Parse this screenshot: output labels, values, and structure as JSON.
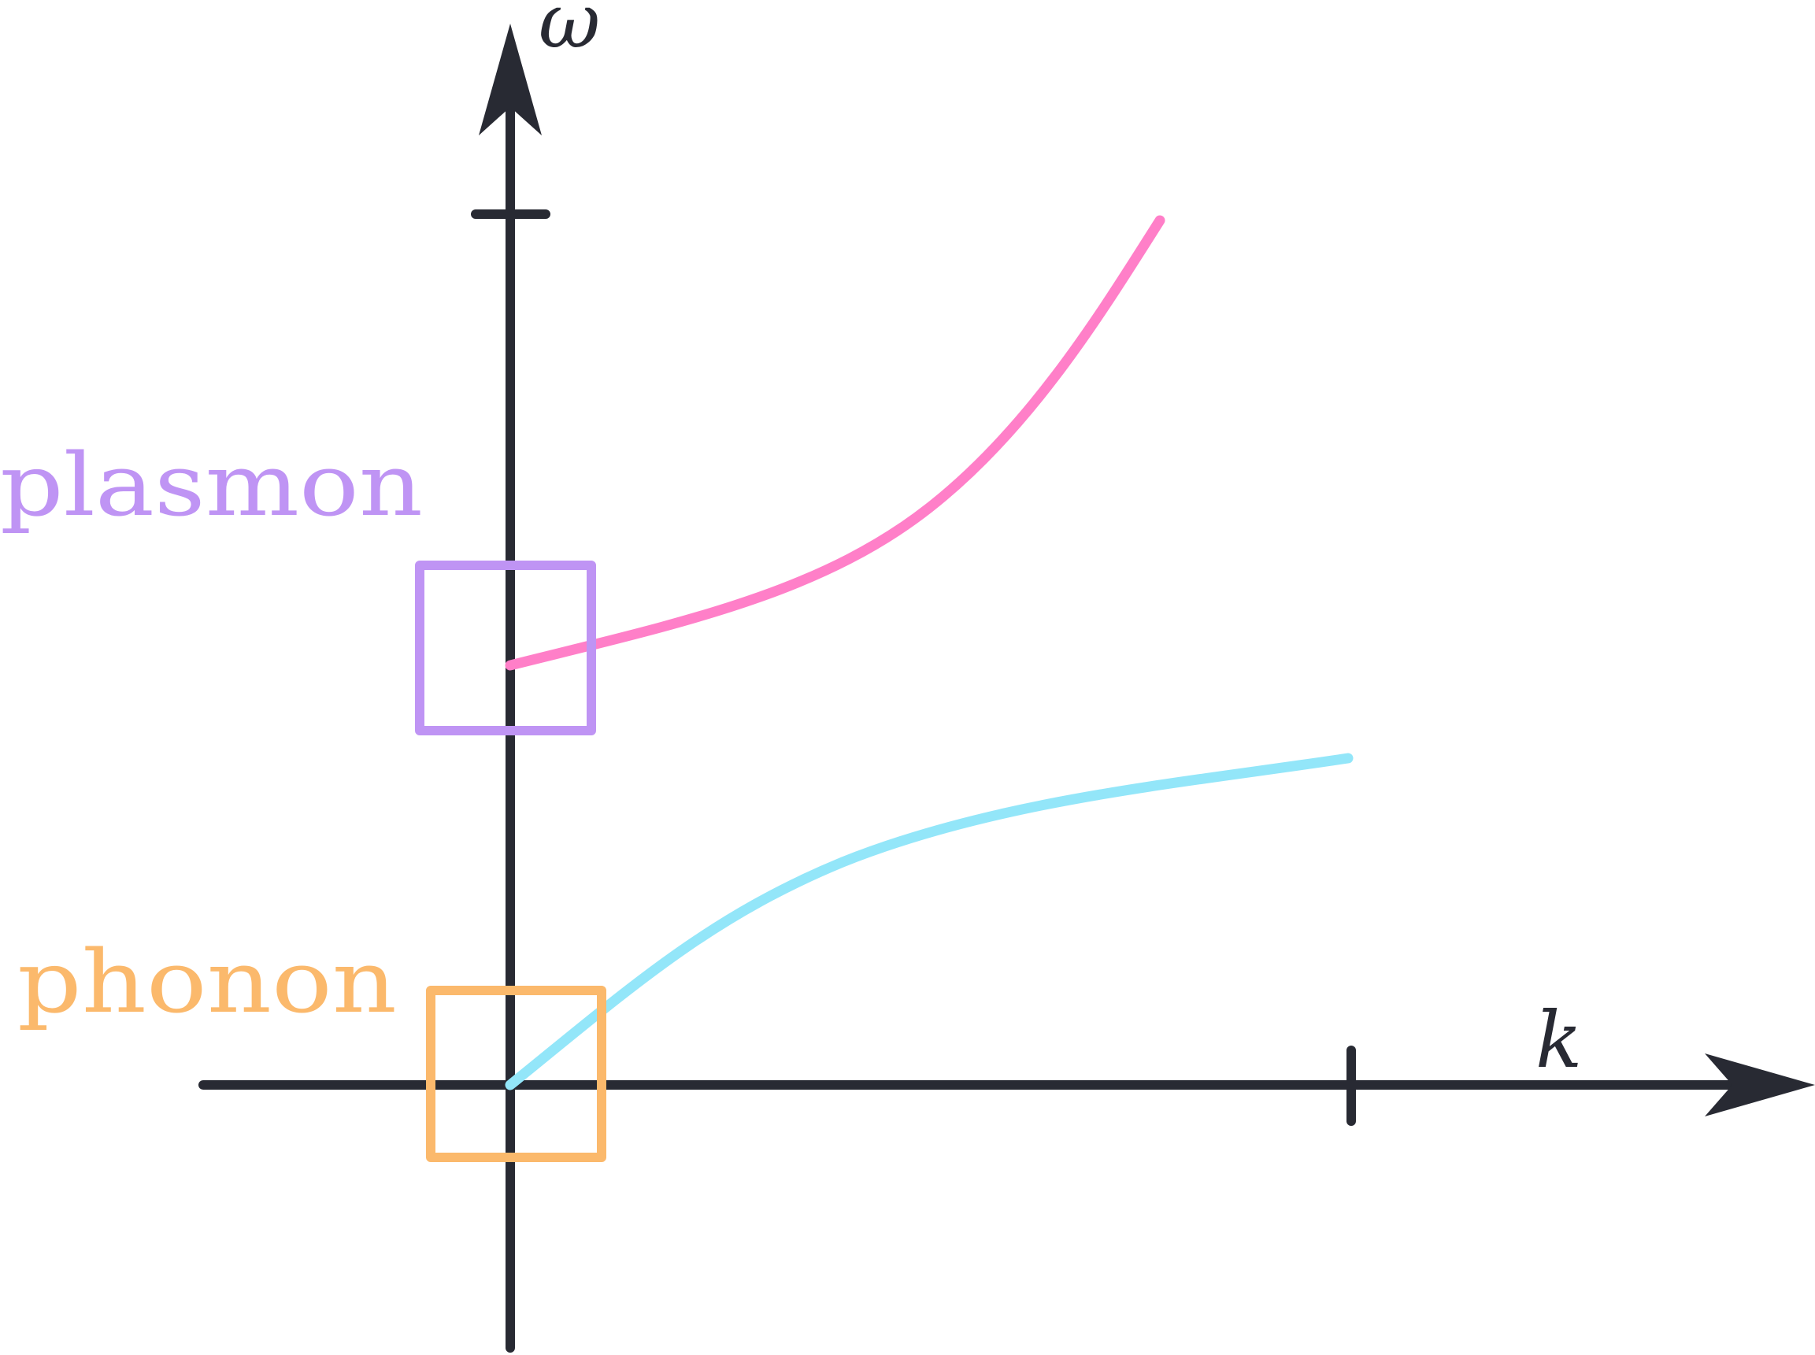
{
  "diagram": {
    "axes": {
      "x_label": "k",
      "y_label": "ω"
    },
    "labels": {
      "plasmon": "plasmon",
      "phonon": "phonon"
    },
    "curves": [
      {
        "name": "plasmon",
        "color": "#ff7fc8"
      },
      {
        "name": "phonon",
        "color": "#93e6f9"
      }
    ],
    "colors": {
      "axis": "#282a33",
      "plasmon_label": "#bf94f4",
      "plasmon_box": "#bf94f4",
      "phonon_label": "#fbb96c",
      "phonon_box": "#fbb96c"
    }
  }
}
